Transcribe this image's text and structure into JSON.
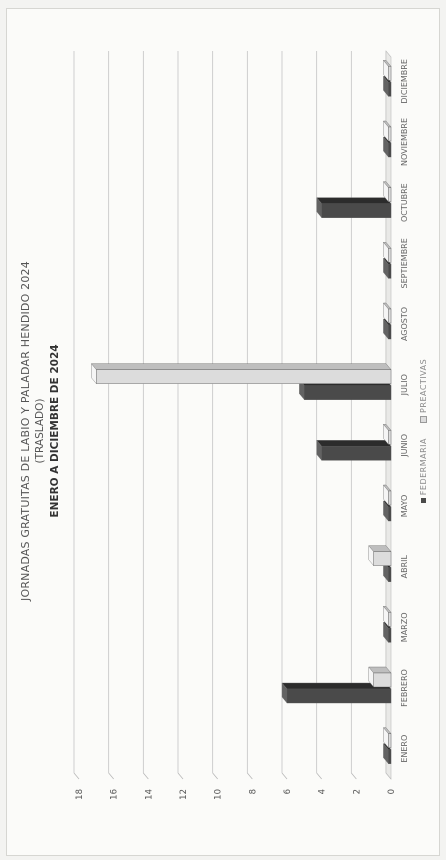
{
  "chart_data": {
    "type": "bar",
    "title": "JORNADAS GRATUITAS DE LABIO Y PALADAR HENDIDO 2024",
    "subtitle": "(TRASLADO)",
    "subtitle2": "ENERO A DICIEMBRE DE 2024",
    "categories": [
      "ENERO",
      "FEBRERO",
      "MARZO",
      "ABRIL",
      "MAYO",
      "JUNIO",
      "JULIO",
      "AGOSTO",
      "SEPTIEMBRE",
      "OCTUBRE",
      "NOVIEMBRE",
      "DICIEMBRE"
    ],
    "series": [
      {
        "name": "FEDERMARIA",
        "values": [
          0,
          6,
          0,
          0,
          0,
          4,
          5,
          0,
          0,
          4,
          0,
          0
        ],
        "color": "#4a4a4a"
      },
      {
        "name": "PREACTIVAS",
        "values": [
          0,
          1,
          0,
          1,
          0,
          0,
          17,
          0,
          0,
          0,
          0,
          0
        ],
        "color": "#dcdcdc"
      }
    ],
    "ylim": [
      0,
      18
    ],
    "yticks": [
      0,
      2,
      4,
      6,
      8,
      10,
      12,
      14,
      16,
      18
    ],
    "grid": true,
    "legend": "bottom"
  }
}
